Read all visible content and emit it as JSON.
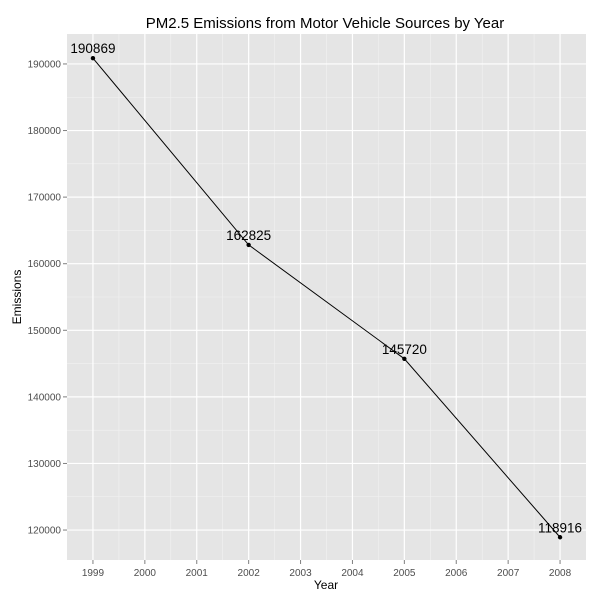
{
  "chart_data": {
    "type": "line",
    "title": "PM2.5 Emissions from Motor Vehicle Sources by Year",
    "xlabel": "Year",
    "ylabel": "Emissions",
    "x": [
      1999,
      2002,
      2005,
      2008
    ],
    "y": [
      190869,
      162825,
      145720,
      118916
    ],
    "data_labels": [
      "190869",
      "162825",
      "145720",
      "118916"
    ],
    "xlim": [
      1998.5,
      2008.5
    ],
    "ylim": [
      115500,
      194500
    ],
    "x_ticks": [
      1999,
      2000,
      2001,
      2002,
      2003,
      2004,
      2005,
      2006,
      2007,
      2008
    ],
    "y_ticks": [
      120000,
      130000,
      140000,
      150000,
      160000,
      170000,
      180000,
      190000
    ],
    "grid": true,
    "legend": "none",
    "colors": {
      "panel_background": "#e5e5e5",
      "grid_major": "#ffffff",
      "grid_minor": "#f2f2f2",
      "line": "#000000",
      "point": "#000000",
      "tick_text": "#4d4d4d"
    }
  }
}
